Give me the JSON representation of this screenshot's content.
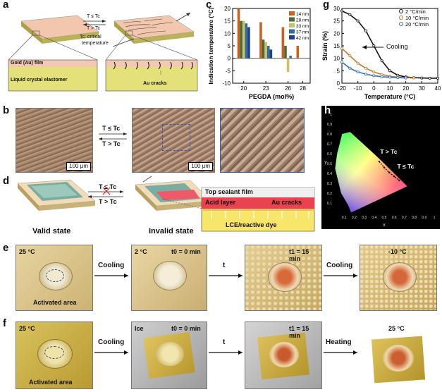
{
  "panels": {
    "a": {
      "label": "a",
      "film_label": "Gold (Au) film",
      "lce_label": "Liquid crystal elastomer",
      "cond_top": "T ≤ Tc",
      "cond_bottom": "T > Tc",
      "tc_note_1": "Tc: critical",
      "tc_note_2": "temperature",
      "cracks_label": "Au cracks"
    },
    "b": {
      "label": "b",
      "cond_top": "T ≤ Tc",
      "cond_bottom": "T > Tc",
      "scale_1": "100 μm",
      "scale_2": "100 μm"
    },
    "c": {
      "label": "c"
    },
    "d": {
      "label": "d",
      "cond_top": "T ≤ Tc",
      "cond_bottom": "T > Tc",
      "valid": "Valid state",
      "invalid": "Invalid state",
      "sealant": "Top sealant film",
      "acid": "Acid layer",
      "cracks": "Au cracks",
      "lce": "LCE/reactive dye"
    },
    "e": {
      "label": "e",
      "t1": "25 °C",
      "t2": "2 °C",
      "t2b": "t0 = 0 min",
      "t3": "t1 = 15 min",
      "t4": "-10 °C",
      "arrow1": "Cooling",
      "arrow2": "t",
      "arrow3": "Cooling",
      "activated": "Activated area"
    },
    "f": {
      "label": "f",
      "t1": "25 °C",
      "t2a": "Ice",
      "t2b": "t0 = 0 min",
      "t3": "t1 = 15 min",
      "t4": "25 °C",
      "arrow1": "Cooling",
      "arrow2": "t",
      "arrow3": "Heating",
      "activated": "Activated area"
    },
    "g": {
      "label": "g",
      "cooling": "Cooling"
    },
    "h": {
      "label": "h",
      "t_gt": "T > Tc",
      "t_le": "T ≤ Tc",
      "x_label": "x",
      "y_label": "y"
    }
  },
  "chart_data": [
    {
      "type": "bar",
      "panel": "c",
      "xlabel": "PEGDA (mol%)",
      "ylabel": "Indication temperature (°C)",
      "ylim": [
        -10,
        20
      ],
      "xlim": [
        18.5,
        29
      ],
      "x_ticks": [
        20,
        23,
        26,
        28
      ],
      "y_ticks": [
        -10,
        -5,
        0,
        5,
        10,
        15,
        20
      ],
      "series": [
        {
          "name": "14 nm",
          "color": "#c8621e",
          "x": [
            20,
            23,
            26,
            28
          ],
          "values": [
            20,
            14.5,
            12.5,
            5
          ]
        },
        {
          "name": "28 nm",
          "color": "#4a6b35",
          "x": [
            20,
            23,
            26
          ],
          "values": [
            15,
            7.5,
            5
          ]
        },
        {
          "name": "33 nm",
          "color": "#c7c26a",
          "x": [
            20,
            23,
            26
          ],
          "values": [
            15,
            6.5,
            -5.5
          ]
        },
        {
          "name": "37 nm",
          "color": "#2e6d9e",
          "x": [
            20,
            23,
            26
          ],
          "values": [
            14,
            5,
            1
          ]
        },
        {
          "name": "42 nm",
          "color": "#1f3f8c",
          "x": [
            20,
            23,
            26
          ],
          "values": [
            12.5,
            3.5,
            0
          ]
        }
      ]
    },
    {
      "type": "scatter",
      "panel": "g",
      "xlabel": "Temperature (°C)",
      "ylabel": "Strain (%)",
      "xlim": [
        -20,
        40
      ],
      "ylim": [
        0,
        30
      ],
      "x_ticks": [
        -20,
        -10,
        0,
        10,
        20,
        30,
        40
      ],
      "y_ticks": [
        0,
        5,
        10,
        15,
        20,
        25,
        30
      ],
      "series": [
        {
          "name": "2 °C/min",
          "color": "#111111",
          "x": [
            -20,
            -15,
            -10,
            -5,
            0,
            5,
            10,
            15,
            20,
            25,
            30,
            35,
            40
          ],
          "values": [
            29,
            27.5,
            25,
            21,
            15,
            9,
            5,
            3.2,
            2.5,
            2.2,
            2.1,
            2.0,
            2.0
          ]
        },
        {
          "name": "10 °C/min",
          "color": "#c07a2a",
          "x": [
            -20,
            -15,
            -10,
            -5,
            0,
            5,
            10,
            15,
            20,
            25
          ],
          "values": [
            14,
            11,
            8,
            6,
            4.5,
            3.5,
            2.8,
            2.4,
            2.2,
            2.1
          ]
        },
        {
          "name": "20 °C/min",
          "color": "#3a6fb0",
          "x": [
            -20,
            -15,
            -10,
            -5,
            0,
            5,
            10,
            15,
            20
          ],
          "values": [
            8.5,
            6,
            4.5,
            3.6,
            3.0,
            2.6,
            2.4,
            2.2,
            2.1
          ]
        }
      ]
    },
    {
      "type": "scatter",
      "panel": "h",
      "xlabel": "x",
      "ylabel": "y",
      "xlim": [
        0,
        1.0
      ],
      "ylim": [
        0,
        1.0
      ],
      "x_ticks": [
        0.1,
        0.2,
        0.3,
        0.4,
        0.5,
        0.6,
        0.7,
        0.8,
        0.9,
        1
      ],
      "y_ticks": [
        0.1,
        0.2,
        0.3,
        0.4,
        0.5,
        0.6,
        0.7,
        0.8,
        0.9,
        1
      ],
      "series": [
        {
          "name": "",
          "color": "#000000",
          "x": [
            0.45,
            0.5,
            0.55,
            0.6,
            0.65
          ],
          "values": [
            0.52,
            0.46,
            0.41,
            0.37,
            0.33
          ]
        }
      ]
    }
  ]
}
